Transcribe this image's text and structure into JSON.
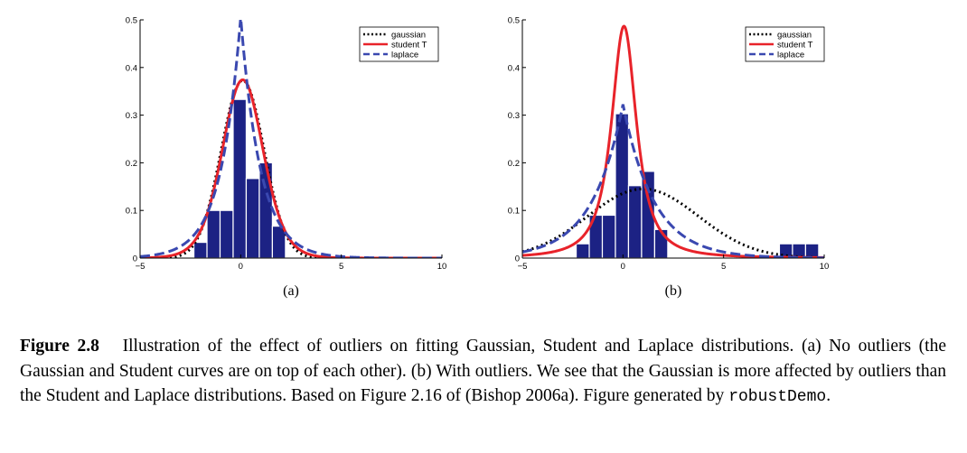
{
  "chart_data": [
    {
      "type": "bar",
      "panel_label": "(a)",
      "xlim": [
        -5,
        10
      ],
      "ylim": [
        0,
        0.5
      ],
      "xticks": [
        -5,
        0,
        5,
        10
      ],
      "yticks": [
        0,
        0.1,
        0.2,
        0.3,
        0.4,
        0.5
      ],
      "legend_position": "top-right",
      "histogram": {
        "bin_width": 0.65,
        "bars": [
          {
            "x": -2.0,
            "y": 0.033
          },
          {
            "x": -1.35,
            "y": 0.1
          },
          {
            "x": -0.7,
            "y": 0.1
          },
          {
            "x": -0.05,
            "y": 0.333
          },
          {
            "x": 0.6,
            "y": 0.167
          },
          {
            "x": 1.25,
            "y": 0.2
          },
          {
            "x": 1.9,
            "y": 0.067
          }
        ]
      },
      "series": [
        {
          "name": "gaussian",
          "dist": "gaussian",
          "mu": 0.1,
          "sigma": 1.07,
          "color": "#000000",
          "dash": "dotted"
        },
        {
          "name": "student T",
          "dist": "student",
          "mu": 0.1,
          "scale": 1.04,
          "nu": 10,
          "color": "#e8232a",
          "dash": "solid"
        },
        {
          "name": "laplace",
          "dist": "laplace",
          "mu": 0.0,
          "b": 0.99,
          "color": "#3a48b0",
          "dash": "dashed"
        }
      ]
    },
    {
      "type": "bar",
      "panel_label": "(b)",
      "xlim": [
        -5,
        10
      ],
      "ylim": [
        0,
        0.5
      ],
      "xticks": [
        -5,
        0,
        5,
        10
      ],
      "yticks": [
        0,
        0.1,
        0.2,
        0.3,
        0.4,
        0.5
      ],
      "legend_position": "top-right",
      "histogram": {
        "bin_width": 0.65,
        "bars": [
          {
            "x": -2.0,
            "y": 0.03
          },
          {
            "x": -1.35,
            "y": 0.09
          },
          {
            "x": -0.7,
            "y": 0.09
          },
          {
            "x": -0.05,
            "y": 0.303
          },
          {
            "x": 0.6,
            "y": 0.152
          },
          {
            "x": 1.25,
            "y": 0.182
          },
          {
            "x": 1.9,
            "y": 0.06
          },
          {
            "x": 8.1,
            "y": 0.03
          },
          {
            "x": 8.75,
            "y": 0.03
          },
          {
            "x": 9.4,
            "y": 0.03
          }
        ]
      },
      "series": [
        {
          "name": "gaussian",
          "dist": "gaussian",
          "mu": 1.0,
          "sigma": 2.75,
          "color": "#000000",
          "dash": "dotted"
        },
        {
          "name": "student T",
          "dist": "student",
          "mu": 0.05,
          "scale": 0.7,
          "nu": 1.5,
          "color": "#e8232a",
          "dash": "solid"
        },
        {
          "name": "laplace",
          "dist": "laplace",
          "mu": 0.0,
          "b": 1.55,
          "color": "#3a48b0",
          "dash": "dashed"
        }
      ]
    }
  ],
  "caption": {
    "label": "Figure 2.8",
    "text_1": "Illustration of the effect of outliers on fitting Gaussian, Student and Laplace distributions. (a) No outliers (the Gaussian and Student curves are on top of each other). (b) With outliers. We see that the Gaussian is more affected by outliers than the Student and Laplace distributions. Based on Figure 2.16 of (Bishop 2006a). Figure generated by ",
    "code": "robustDemo",
    "text_2": "."
  }
}
